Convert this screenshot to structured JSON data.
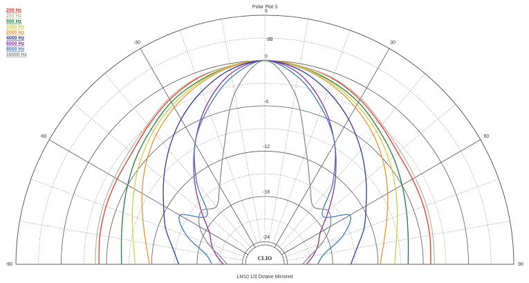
{
  "chart_data": {
    "type": "polar",
    "title": "Polar Plot 3",
    "subtitle": "LM10   1/3 Octave   Mirrored",
    "logo": "CLIO",
    "r_label": "dB",
    "rlim": [
      -27,
      6
    ],
    "rticks": [
      6,
      0,
      -6,
      -12,
      -18,
      -24
    ],
    "thetalim": [
      -90,
      90
    ],
    "thetaticks": [
      -90,
      -60,
      -30,
      30,
      60,
      90
    ],
    "angles": [
      -90,
      -80,
      -70,
      -60,
      -50,
      -40,
      -30,
      -20,
      -10,
      0,
      10,
      20,
      30,
      40,
      50,
      60,
      70,
      80,
      90
    ],
    "series": [
      {
        "name": "200 Hz",
        "color": "#e8342a",
        "values": [
          -5,
          -4.8,
          -4.6,
          -4.4,
          -4,
          -3,
          -1.8,
          -0.8,
          -0.3,
          0,
          -0.3,
          -0.8,
          -1.8,
          -3,
          -4,
          -4.4,
          -4.6,
          -4.8,
          -5
        ]
      },
      {
        "name": "250 Hz",
        "color": "#b9b9a0",
        "values": [
          -4.5,
          -4.4,
          -4.2,
          -4,
          -3.6,
          -2.8,
          -1.6,
          -0.7,
          -0.3,
          0,
          -0.3,
          -0.7,
          -1.6,
          -2.8,
          -3.6,
          -4,
          -4.2,
          -4.4,
          -4.5
        ]
      },
      {
        "name": "500 Hz",
        "color": "#1f7a3a",
        "values": [
          -8,
          -7.7,
          -7,
          -6,
          -4.8,
          -3.6,
          -2.2,
          -1.2,
          -0.4,
          0,
          -0.4,
          -1.2,
          -2.2,
          -3.6,
          -4.8,
          -6,
          -7,
          -7.7,
          -8
        ]
      },
      {
        "name": "1000 Hz",
        "color": "#c8d23a",
        "values": [
          -9.8,
          -9.3,
          -8.3,
          -7,
          -5.5,
          -4,
          -2.6,
          -1.4,
          -0.4,
          0,
          -0.4,
          -1.4,
          -2.6,
          -4,
          -5.5,
          -7,
          -8.3,
          -9.3,
          -9.8
        ]
      },
      {
        "name": "2000 Hz",
        "color": "#f0902a",
        "values": [
          -11.7,
          -11,
          -9.8,
          -8.2,
          -6.4,
          -4.6,
          -3,
          -1.6,
          -0.5,
          0,
          -0.5,
          -1.6,
          -3,
          -4.6,
          -6.4,
          -8.2,
          -9.8,
          -11,
          -11.7
        ]
      },
      {
        "name": "4000 Hz",
        "color": "#2a3a9a",
        "values": [
          -15.6,
          -14.6,
          -13,
          -11.5,
          -9.5,
          -7.2,
          -4.8,
          -2.6,
          -0.8,
          0,
          -0.8,
          -2.6,
          -4.8,
          -7.2,
          -9.5,
          -11.5,
          -13,
          -14.6,
          -15.6
        ]
      },
      {
        "name": "6000 Hz",
        "color": "#8a2a9a",
        "values": [
          -21.5,
          -20.5,
          -19.5,
          -18.5,
          -16,
          -12.5,
          -8.5,
          -4.5,
          -1.3,
          0,
          -1.3,
          -4.5,
          -8.5,
          -12.5,
          -16,
          -18.5,
          -19.5,
          -20.5,
          -21.5
        ]
      },
      {
        "name": "8000 Hz",
        "color": "#3a7ac8",
        "values": [
          -20,
          -19,
          -16,
          -14,
          -17,
          -13,
          -8.5,
          -5,
          -1.8,
          0,
          -1.8,
          -5,
          -8.5,
          -13,
          -17,
          -14,
          -16,
          -19,
          -20
        ]
      },
      {
        "name": "16000 Hz",
        "color": "#8a8a8a",
        "values": [
          -22,
          -21,
          -19,
          -17,
          -16,
          -17,
          -15,
          -11,
          -4,
          0,
          -4,
          -11,
          -15,
          -17,
          -16,
          -17,
          -19,
          -21,
          -22
        ]
      }
    ]
  }
}
